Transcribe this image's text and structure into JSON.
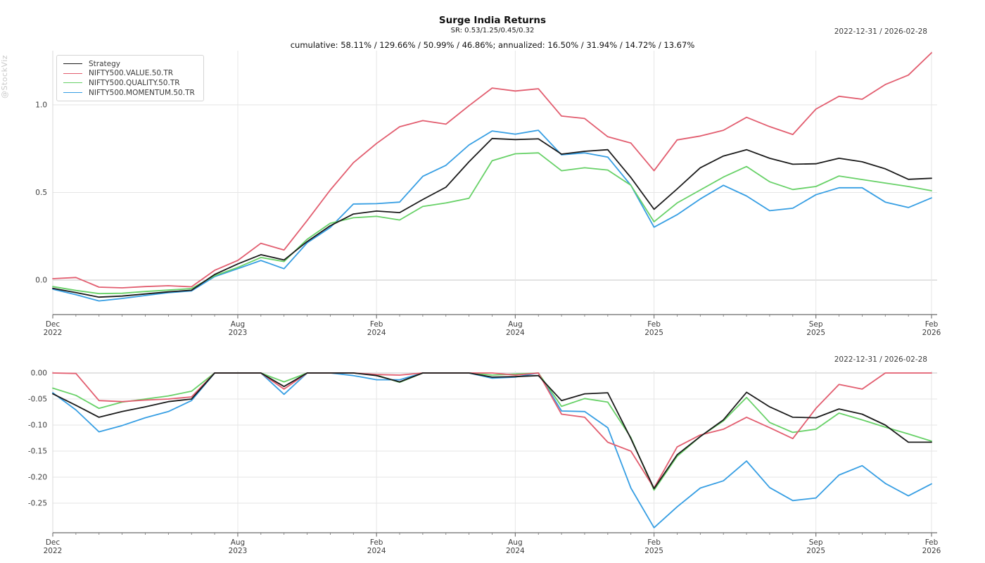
{
  "header": {
    "title": "Surge India Returns",
    "subtitle": "SR: 0.53/1.25/0.45/0.32",
    "stats_line": "cumulative: 58.11% / 129.66% / 50.99% / 46.86%; annualized: 16.50% / 31.94% / 14.72% / 13.67%",
    "date_range": "2022-12-31 / 2026-02-28"
  },
  "watermark": "@StockViz",
  "colors": {
    "strategy": "#1a1a1a",
    "value": "#e25d6f",
    "quality": "#67d167",
    "momentum": "#369ee3",
    "grid": "#e6e6e6",
    "zero_line": "#c7c7c7",
    "axis_line": "#6b6b6b",
    "spine": "#d9d9d9",
    "tick": "#777777",
    "tick_label": "#3d3d3d"
  },
  "chart_data": [
    {
      "type": "line",
      "name": "cumulative-returns",
      "date_range_label": "2022-12-31 / 2026-02-28",
      "x": [
        "2022-12",
        "2023-01",
        "2023-02",
        "2023-03",
        "2023-04",
        "2023-05",
        "2023-06",
        "2023-07",
        "2023-08",
        "2023-09",
        "2023-10",
        "2023-11",
        "2023-12",
        "2024-01",
        "2024-02",
        "2024-03",
        "2024-04",
        "2024-05",
        "2024-06",
        "2024-07",
        "2024-08",
        "2024-09",
        "2024-10",
        "2024-11",
        "2024-12",
        "2025-01",
        "2025-02",
        "2025-03",
        "2025-04",
        "2025-05",
        "2025-06",
        "2025-07",
        "2025-08",
        "2025-09",
        "2025-10",
        "2025-11",
        "2025-12",
        "2026-01",
        "2026-02"
      ],
      "xticks": [
        {
          "index": 0,
          "month": "Dec",
          "year": "2022"
        },
        {
          "index": 8,
          "month": "Aug",
          "year": "2023"
        },
        {
          "index": 14,
          "month": "Feb",
          "year": "2024"
        },
        {
          "index": 20,
          "month": "Aug",
          "year": "2024"
        },
        {
          "index": 26,
          "month": "Feb",
          "year": "2025"
        },
        {
          "index": 33,
          "month": "Sep",
          "year": "2025"
        },
        {
          "index": 38,
          "month": "Feb",
          "year": "2026"
        }
      ],
      "yticks": [
        {
          "v": 0.0,
          "label": "0.0"
        },
        {
          "v": 0.5,
          "label": "0.5"
        },
        {
          "v": 1.0,
          "label": "1.0"
        }
      ],
      "ylim": [
        -0.16,
        1.33
      ],
      "grid": true,
      "legend_position": "top-left",
      "series": [
        {
          "name": "Strategy",
          "color_key": "strategy",
          "values": [
            -0.047,
            -0.071,
            -0.097,
            -0.091,
            -0.079,
            -0.067,
            -0.058,
            0.032,
            0.092,
            0.145,
            0.115,
            0.22,
            0.31,
            0.377,
            0.394,
            0.385,
            0.46,
            0.53,
            0.675,
            0.808,
            0.802,
            0.806,
            0.719,
            0.735,
            0.744,
            0.585,
            0.404,
            0.52,
            0.641,
            0.708,
            0.744,
            0.695,
            0.661,
            0.664,
            0.695,
            0.675,
            0.635,
            0.575,
            0.581
          ]
        },
        {
          "name": "NIFTY500.VALUE.50.TR",
          "color_key": "value",
          "values": [
            0.008,
            0.015,
            -0.04,
            -0.044,
            -0.037,
            -0.032,
            -0.038,
            0.056,
            0.112,
            0.21,
            0.172,
            0.34,
            0.514,
            0.67,
            0.78,
            0.875,
            0.91,
            0.89,
            0.995,
            1.096,
            1.079,
            1.092,
            0.936,
            0.922,
            0.818,
            0.782,
            0.624,
            0.8,
            0.822,
            0.855,
            0.929,
            0.876,
            0.831,
            0.976,
            1.049,
            1.032,
            1.116,
            1.17,
            1.297
          ]
        },
        {
          "name": "NIFTY500.QUALITY.50.TR",
          "color_key": "quality",
          "values": [
            -0.037,
            -0.059,
            -0.077,
            -0.075,
            -0.065,
            -0.057,
            -0.048,
            0.025,
            0.072,
            0.129,
            0.106,
            0.233,
            0.324,
            0.356,
            0.364,
            0.343,
            0.42,
            0.44,
            0.467,
            0.681,
            0.721,
            0.726,
            0.624,
            0.641,
            0.628,
            0.541,
            0.333,
            0.44,
            0.514,
            0.588,
            0.648,
            0.561,
            0.517,
            0.534,
            0.594,
            0.574,
            0.554,
            0.534,
            0.51
          ]
        },
        {
          "name": "NIFTY500.MOMENTUM.50.TR",
          "color_key": "momentum",
          "values": [
            -0.052,
            -0.083,
            -0.119,
            -0.105,
            -0.088,
            -0.072,
            -0.062,
            0.02,
            0.065,
            0.112,
            0.065,
            0.213,
            0.3,
            0.434,
            0.436,
            0.445,
            0.592,
            0.655,
            0.771,
            0.851,
            0.833,
            0.855,
            0.715,
            0.726,
            0.702,
            0.541,
            0.302,
            0.373,
            0.463,
            0.541,
            0.48,
            0.396,
            0.41,
            0.487,
            0.527,
            0.527,
            0.445,
            0.414,
            0.469
          ]
        }
      ]
    },
    {
      "type": "line",
      "name": "drawdowns",
      "date_range_label": "2022-12-31 / 2026-02-28",
      "x": [
        "2022-12",
        "2023-01",
        "2023-02",
        "2023-03",
        "2023-04",
        "2023-05",
        "2023-06",
        "2023-07",
        "2023-08",
        "2023-09",
        "2023-10",
        "2023-11",
        "2023-12",
        "2024-01",
        "2024-02",
        "2024-03",
        "2024-04",
        "2024-05",
        "2024-06",
        "2024-07",
        "2024-08",
        "2024-09",
        "2024-10",
        "2024-11",
        "2024-12",
        "2025-01",
        "2025-02",
        "2025-03",
        "2025-04",
        "2025-05",
        "2025-06",
        "2025-07",
        "2025-08",
        "2025-09",
        "2025-10",
        "2025-11",
        "2025-12",
        "2026-01",
        "2026-02"
      ],
      "xticks": [
        {
          "index": 0,
          "month": "Dec",
          "year": "2022"
        },
        {
          "index": 8,
          "month": "Aug",
          "year": "2023"
        },
        {
          "index": 14,
          "month": "Feb",
          "year": "2024"
        },
        {
          "index": 20,
          "month": "Aug",
          "year": "2024"
        },
        {
          "index": 26,
          "month": "Feb",
          "year": "2025"
        },
        {
          "index": 33,
          "month": "Sep",
          "year": "2025"
        },
        {
          "index": 38,
          "month": "Feb",
          "year": "2026"
        }
      ],
      "yticks": [
        {
          "v": 0.0,
          "label": "0.00"
        },
        {
          "v": -0.05,
          "label": "-0.05"
        },
        {
          "v": -0.1,
          "label": "-0.10"
        },
        {
          "v": -0.15,
          "label": "-0.15"
        },
        {
          "v": -0.2,
          "label": "-0.20"
        },
        {
          "v": -0.25,
          "label": "-0.25"
        }
      ],
      "ylim": [
        -0.31,
        0.005
      ],
      "grid": true,
      "legend_position": "none",
      "series": [
        {
          "name": "Strategy",
          "color_key": "strategy",
          "values": [
            -0.04,
            -0.062,
            -0.085,
            -0.074,
            -0.065,
            -0.055,
            -0.05,
            0,
            0,
            0,
            -0.026,
            0,
            0,
            0,
            -0.005,
            -0.017,
            0,
            0,
            0,
            -0.008,
            -0.007,
            -0.005,
            -0.053,
            -0.04,
            -0.038,
            -0.126,
            -0.222,
            -0.157,
            -0.122,
            -0.09,
            -0.037,
            -0.065,
            -0.085,
            -0.086,
            -0.069,
            -0.079,
            -0.1,
            -0.133,
            -0.133
          ]
        },
        {
          "name": "NIFTY500.VALUE.50.TR",
          "color_key": "value",
          "values": [
            0,
            -0.001,
            -0.053,
            -0.055,
            -0.052,
            -0.05,
            -0.046,
            0,
            0,
            0,
            -0.031,
            0,
            0,
            0,
            -0.003,
            -0.004,
            0,
            0,
            0,
            0,
            -0.004,
            0,
            -0.079,
            -0.085,
            -0.133,
            -0.15,
            -0.221,
            -0.142,
            -0.119,
            -0.108,
            -0.085,
            -0.105,
            -0.126,
            -0.068,
            -0.022,
            -0.031,
            0,
            0,
            0
          ]
        },
        {
          "name": "NIFTY500.QUALITY.50.TR",
          "color_key": "quality",
          "values": [
            -0.029,
            -0.043,
            -0.068,
            -0.056,
            -0.05,
            -0.044,
            -0.035,
            0,
            0,
            0,
            -0.017,
            0,
            0,
            0,
            -0.004,
            -0.018,
            0,
            0,
            0,
            -0.004,
            -0.002,
            0,
            -0.064,
            -0.049,
            -0.056,
            -0.124,
            -0.225,
            -0.16,
            -0.122,
            -0.092,
            -0.047,
            -0.095,
            -0.114,
            -0.108,
            -0.077,
            -0.09,
            -0.104,
            -0.117,
            -0.131
          ]
        },
        {
          "name": "NIFTY500.MOMENTUM.50.TR",
          "color_key": "momentum",
          "values": [
            -0.038,
            -0.071,
            -0.113,
            -0.101,
            -0.086,
            -0.074,
            -0.053,
            0,
            0,
            0,
            -0.041,
            0,
            0,
            -0.005,
            -0.013,
            -0.013,
            0,
            0,
            0,
            -0.01,
            -0.008,
            0,
            -0.073,
            -0.074,
            -0.105,
            -0.221,
            -0.297,
            -0.257,
            -0.221,
            -0.207,
            -0.169,
            -0.22,
            -0.245,
            -0.24,
            -0.196,
            -0.178,
            -0.212,
            -0.236,
            -0.213
          ]
        }
      ]
    }
  ]
}
